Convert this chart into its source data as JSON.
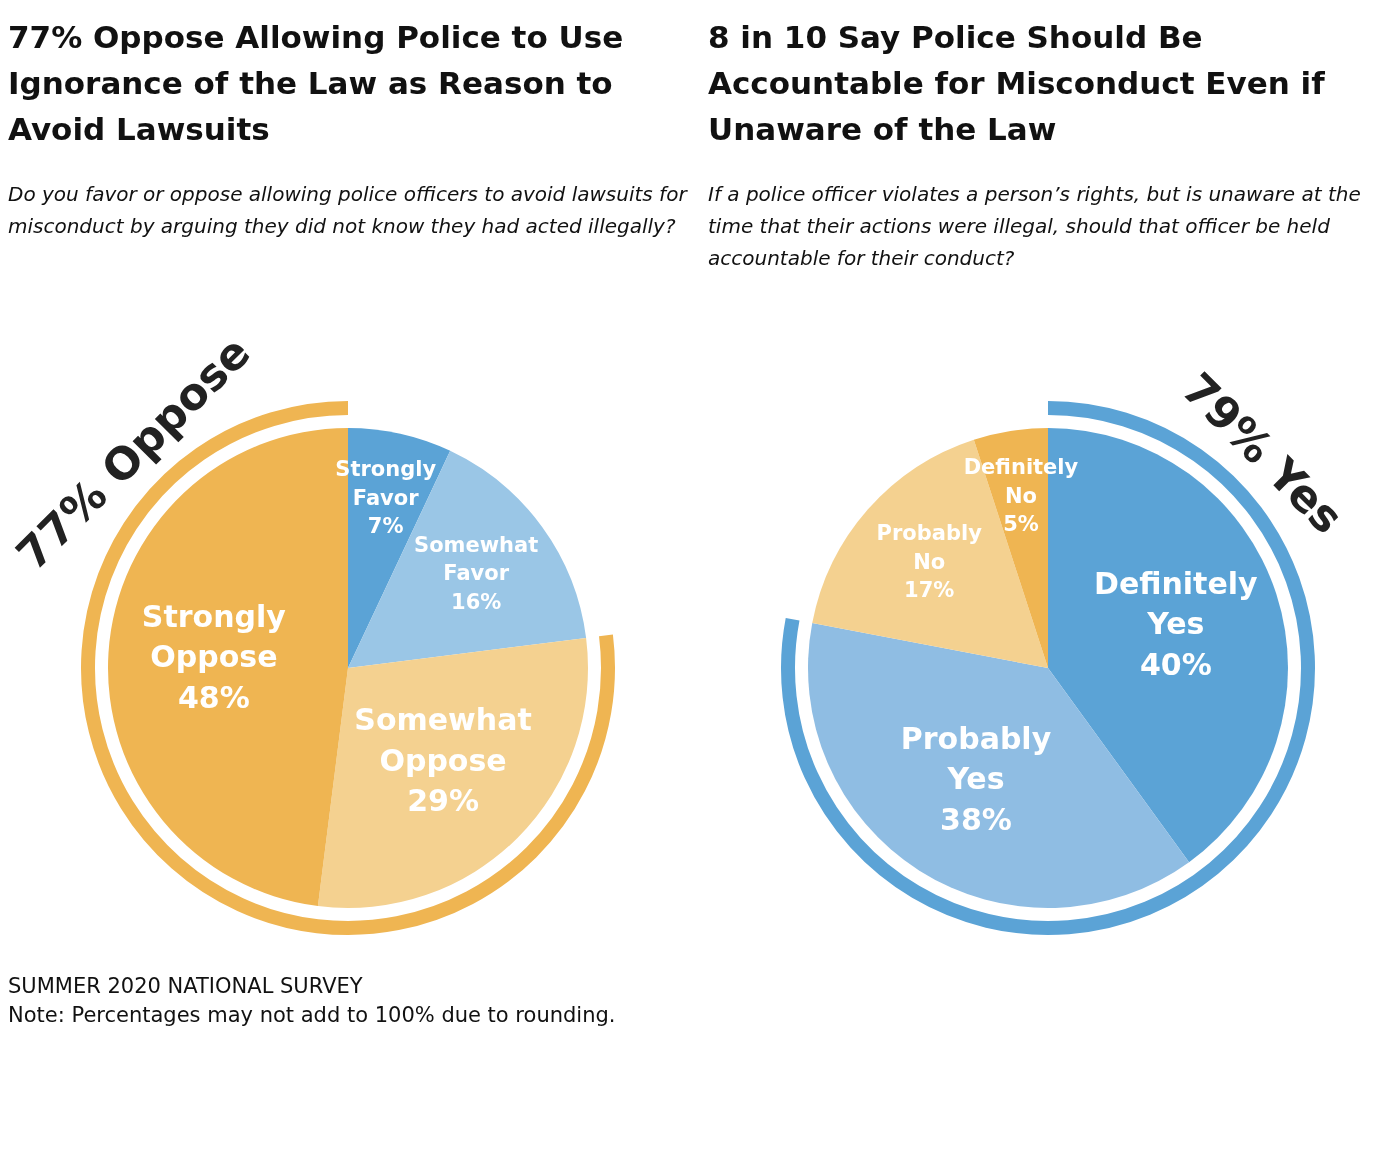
{
  "chart_data": [
    {
      "type": "pie",
      "title": "77% Oppose Allowing Police to Use Ignorance of the Law as Reason to Avoid Lawsuits",
      "subtitle": "Do you favor or oppose allowing police officers to avoid lawsuits for misconduct by arguing they did not know they had acted illegally?",
      "categories": [
        "Strongly Favor",
        "Somewhat Favor",
        "Somewhat Oppose",
        "Strongly Oppose"
      ],
      "values": [
        7,
        16,
        29,
        48
      ],
      "value_labels": [
        "7%",
        "16%",
        "29%",
        "48%"
      ],
      "colors": [
        "#5ba3d6",
        "#9ac6e6",
        "#f4d190",
        "#efb552"
      ],
      "legend": false,
      "annotations": [
        "77% Oppose",
        "SUMMER 2020 NATIONAL SURVEY",
        "Note: Percentages may not add to 100% due to rounding."
      ]
    },
    {
      "type": "pie",
      "title": "8 in 10 Say Police Should Be Accountable for Misconduct Even if Unaware of the Law",
      "subtitle": "If a police officer violates a person’s rights, but is unaware at the time that their actions were illegal, should that officer be held accountable for their conduct?",
      "categories": [
        "Definitely Yes",
        "Probably Yes",
        "Probably No",
        "Definitely No"
      ],
      "values": [
        40,
        38,
        17,
        5
      ],
      "value_labels": [
        "40%",
        "38%",
        "17%",
        "5%"
      ],
      "colors": [
        "#5ba3d6",
        "#8fbde3",
        "#f4d190",
        "#efb552"
      ],
      "legend": false,
      "annotations": [
        "79% Yes"
      ]
    }
  ]
}
